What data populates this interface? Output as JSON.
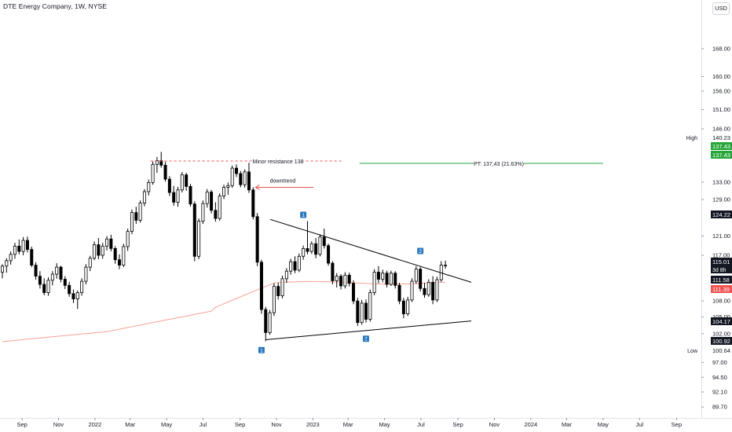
{
  "header": {
    "title": "DTE Energy Company, 1W, NYSE",
    "currency": "USD"
  },
  "chart_data": {
    "type": "candlestick",
    "symbol": "DTE",
    "interval": "1W",
    "exchange": "NYSE",
    "colors": {
      "up_body": "#ffffff",
      "down_body": "#000000",
      "wick": "#000000",
      "ma_line": "#f7a097",
      "resistance": "#ef5350",
      "target": "#26a63a",
      "trendline": "#000000",
      "arrow": "#ef5350",
      "marker": "#2a79bd",
      "axis_text": "#131722"
    },
    "y_axis": {
      "scale": "log",
      "range": [
        88.5,
        178
      ],
      "ticks": [
        "168.00",
        "160.00",
        "156.00",
        "151.00",
        "146.00",
        "133.00",
        "129.00",
        "121.00",
        "117.00",
        "108.00",
        "105.00",
        "102.00",
        "97.00",
        "94.50",
        "92.10",
        "89.70"
      ]
    },
    "x_axis": {
      "range": [
        "2021-07-26",
        "2024-10-10"
      ],
      "ticks": [
        {
          "date": "2021-09-01",
          "label": "Sep"
        },
        {
          "date": "2021-11-01",
          "label": "Nov"
        },
        {
          "date": "2022-01-01",
          "label": "2022"
        },
        {
          "date": "2022-03-01",
          "label": "Mar"
        },
        {
          "date": "2022-05-01",
          "label": "May"
        },
        {
          "date": "2022-07-01",
          "label": "Jul"
        },
        {
          "date": "2022-09-01",
          "label": "Sep"
        },
        {
          "date": "2022-11-01",
          "label": "Nov"
        },
        {
          "date": "2023-01-01",
          "label": "2023"
        },
        {
          "date": "2023-03-01",
          "label": "Mar"
        },
        {
          "date": "2023-05-01",
          "label": "May"
        },
        {
          "date": "2023-07-01",
          "label": "Jul"
        },
        {
          "date": "2023-09-01",
          "label": "Sep"
        },
        {
          "date": "2023-11-01",
          "label": "Nov"
        },
        {
          "date": "2024-01-01",
          "label": "2024"
        },
        {
          "date": "2024-03-01",
          "label": "Mar"
        },
        {
          "date": "2024-05-01",
          "label": "May"
        },
        {
          "date": "2024-07-01",
          "label": "Jul"
        },
        {
          "date": "2024-09-01",
          "label": "Sep"
        }
      ]
    },
    "price_tags": [
      {
        "label": "High",
        "value": "140.23",
        "style": "plain"
      },
      {
        "label": "",
        "value": "137.43",
        "style": "green"
      },
      {
        "label": "",
        "value": "137.43",
        "style": "green"
      },
      {
        "label": "",
        "value": "124.22",
        "style": "dark"
      },
      {
        "label": "",
        "value": "115.01",
        "style": "dark",
        "sub": "3d 8h"
      },
      {
        "label": "",
        "value": "111.58",
        "style": "dark"
      },
      {
        "label": "",
        "value": "111.39",
        "style": "red"
      },
      {
        "label": "",
        "value": "104.17",
        "style": "dark"
      },
      {
        "label": "",
        "value": "100.92",
        "style": "dark"
      },
      {
        "label": "Low",
        "value": "100.64",
        "style": "plain"
      }
    ],
    "annotations": {
      "resistance_label": "Minor resistance 138",
      "target_label": "PT: 137,43 (21.63%)",
      "downtrend_label": "downtrend",
      "markers": [
        "1",
        "1",
        "2",
        "2"
      ]
    },
    "candles": [
      {
        "date": "2021-07-26",
        "o": 113.6,
        "h": 115.2,
        "l": 112.4,
        "c": 114.8
      },
      {
        "date": "2021-08-02",
        "o": 114.8,
        "h": 116.4,
        "l": 113.5,
        "c": 115.9
      },
      {
        "date": "2021-08-09",
        "o": 115.9,
        "h": 117.8,
        "l": 115.1,
        "c": 117.2
      },
      {
        "date": "2021-08-16",
        "o": 117.2,
        "h": 119.6,
        "l": 116.3,
        "c": 118.9
      },
      {
        "date": "2021-08-23",
        "o": 118.9,
        "h": 120.3,
        "l": 117.2,
        "c": 117.8
      },
      {
        "date": "2021-08-30",
        "o": 117.8,
        "h": 120.8,
        "l": 117.0,
        "c": 120.1
      },
      {
        "date": "2021-09-06",
        "o": 120.1,
        "h": 120.9,
        "l": 117.6,
        "c": 118.2
      },
      {
        "date": "2021-09-13",
        "o": 118.2,
        "h": 118.8,
        "l": 114.6,
        "c": 115.0
      },
      {
        "date": "2021-09-20",
        "o": 115.0,
        "h": 115.6,
        "l": 112.1,
        "c": 112.8
      },
      {
        "date": "2021-09-27",
        "o": 112.8,
        "h": 113.8,
        "l": 110.4,
        "c": 111.2
      },
      {
        "date": "2021-10-04",
        "o": 111.2,
        "h": 112.4,
        "l": 109.1,
        "c": 109.6
      },
      {
        "date": "2021-10-11",
        "o": 109.6,
        "h": 112.6,
        "l": 109.0,
        "c": 112.0
      },
      {
        "date": "2021-10-18",
        "o": 112.0,
        "h": 113.8,
        "l": 111.0,
        "c": 113.2
      },
      {
        "date": "2021-10-25",
        "o": 113.2,
        "h": 115.4,
        "l": 112.3,
        "c": 114.6
      },
      {
        "date": "2021-11-01",
        "o": 114.6,
        "h": 114.9,
        "l": 111.6,
        "c": 112.2
      },
      {
        "date": "2021-11-08",
        "o": 112.2,
        "h": 112.8,
        "l": 110.3,
        "c": 111.0
      },
      {
        "date": "2021-11-15",
        "o": 111.0,
        "h": 111.7,
        "l": 108.8,
        "c": 109.4
      },
      {
        "date": "2021-11-22",
        "o": 109.4,
        "h": 110.2,
        "l": 107.6,
        "c": 108.4
      },
      {
        "date": "2021-11-29",
        "o": 108.4,
        "h": 110.0,
        "l": 106.5,
        "c": 109.6
      },
      {
        "date": "2021-12-06",
        "o": 109.6,
        "h": 112.4,
        "l": 109.0,
        "c": 111.8
      },
      {
        "date": "2021-12-13",
        "o": 111.8,
        "h": 115.2,
        "l": 111.2,
        "c": 114.6
      },
      {
        "date": "2021-12-20",
        "o": 114.6,
        "h": 116.9,
        "l": 113.8,
        "c": 116.4
      },
      {
        "date": "2021-12-27",
        "o": 116.4,
        "h": 119.9,
        "l": 116.0,
        "c": 119.2
      },
      {
        "date": "2022-01-03",
        "o": 119.2,
        "h": 120.6,
        "l": 116.2,
        "c": 117.0
      },
      {
        "date": "2022-01-10",
        "o": 117.0,
        "h": 119.6,
        "l": 116.3,
        "c": 118.9
      },
      {
        "date": "2022-01-17",
        "o": 118.9,
        "h": 121.0,
        "l": 118.0,
        "c": 120.4
      },
      {
        "date": "2022-01-24",
        "o": 120.4,
        "h": 121.3,
        "l": 117.8,
        "c": 118.4
      },
      {
        "date": "2022-01-31",
        "o": 118.4,
        "h": 118.9,
        "l": 115.3,
        "c": 116.1
      },
      {
        "date": "2022-02-07",
        "o": 116.1,
        "h": 117.2,
        "l": 114.2,
        "c": 115.0
      },
      {
        "date": "2022-02-14",
        "o": 115.0,
        "h": 119.4,
        "l": 114.6,
        "c": 118.8
      },
      {
        "date": "2022-02-21",
        "o": 118.8,
        "h": 122.6,
        "l": 117.9,
        "c": 122.0
      },
      {
        "date": "2022-02-28",
        "o": 122.0,
        "h": 126.8,
        "l": 121.4,
        "c": 126.1
      },
      {
        "date": "2022-03-07",
        "o": 126.1,
        "h": 127.4,
        "l": 123.6,
        "c": 124.4
      },
      {
        "date": "2022-03-14",
        "o": 124.4,
        "h": 128.8,
        "l": 123.9,
        "c": 128.2
      },
      {
        "date": "2022-03-21",
        "o": 128.2,
        "h": 131.4,
        "l": 127.5,
        "c": 130.8
      },
      {
        "date": "2022-03-28",
        "o": 130.8,
        "h": 133.6,
        "l": 129.9,
        "c": 132.9
      },
      {
        "date": "2022-04-04",
        "o": 132.9,
        "h": 137.9,
        "l": 132.4,
        "c": 137.2
      },
      {
        "date": "2022-04-11",
        "o": 137.2,
        "h": 139.0,
        "l": 135.2,
        "c": 138.1
      },
      {
        "date": "2022-04-18",
        "o": 138.1,
        "h": 140.23,
        "l": 136.4,
        "c": 137.0
      },
      {
        "date": "2022-04-25",
        "o": 137.0,
        "h": 137.8,
        "l": 133.1,
        "c": 133.7
      },
      {
        "date": "2022-05-02",
        "o": 133.7,
        "h": 134.4,
        "l": 129.8,
        "c": 130.6
      },
      {
        "date": "2022-05-09",
        "o": 130.6,
        "h": 132.1,
        "l": 127.6,
        "c": 128.4
      },
      {
        "date": "2022-05-16",
        "o": 128.4,
        "h": 131.9,
        "l": 127.4,
        "c": 131.2
      },
      {
        "date": "2022-05-23",
        "o": 131.2,
        "h": 135.4,
        "l": 130.6,
        "c": 134.7
      },
      {
        "date": "2022-05-30",
        "o": 134.7,
        "h": 135.2,
        "l": 131.0,
        "c": 132.0
      },
      {
        "date": "2022-06-06",
        "o": 132.0,
        "h": 132.6,
        "l": 127.4,
        "c": 128.0
      },
      {
        "date": "2022-06-13",
        "o": 128.0,
        "h": 128.6,
        "l": 115.8,
        "c": 116.8
      },
      {
        "date": "2022-06-20",
        "o": 116.8,
        "h": 124.8,
        "l": 116.2,
        "c": 124.2
      },
      {
        "date": "2022-06-27",
        "o": 124.2,
        "h": 128.8,
        "l": 123.6,
        "c": 128.1
      },
      {
        "date": "2022-07-04",
        "o": 128.1,
        "h": 131.4,
        "l": 127.2,
        "c": 130.7
      },
      {
        "date": "2022-07-11",
        "o": 130.7,
        "h": 131.2,
        "l": 125.9,
        "c": 126.6
      },
      {
        "date": "2022-07-18",
        "o": 126.6,
        "h": 128.4,
        "l": 124.1,
        "c": 124.8
      },
      {
        "date": "2022-07-25",
        "o": 124.8,
        "h": 130.4,
        "l": 124.3,
        "c": 129.8
      },
      {
        "date": "2022-08-01",
        "o": 129.8,
        "h": 132.4,
        "l": 129.1,
        "c": 131.8
      },
      {
        "date": "2022-08-08",
        "o": 131.8,
        "h": 132.9,
        "l": 130.1,
        "c": 132.2
      },
      {
        "date": "2022-08-15",
        "o": 132.2,
        "h": 136.9,
        "l": 131.7,
        "c": 136.3
      },
      {
        "date": "2022-08-22",
        "o": 136.3,
        "h": 137.2,
        "l": 134.2,
        "c": 135.0
      },
      {
        "date": "2022-08-29",
        "o": 135.0,
        "h": 135.6,
        "l": 131.8,
        "c": 132.4
      },
      {
        "date": "2022-09-05",
        "o": 132.4,
        "h": 136.0,
        "l": 131.7,
        "c": 135.4
      },
      {
        "date": "2022-09-12",
        "o": 135.4,
        "h": 137.6,
        "l": 130.5,
        "c": 131.2
      },
      {
        "date": "2022-09-19",
        "o": 131.2,
        "h": 131.8,
        "l": 124.6,
        "c": 125.2
      },
      {
        "date": "2022-09-26",
        "o": 125.2,
        "h": 126.0,
        "l": 114.8,
        "c": 115.6
      },
      {
        "date": "2022-10-03",
        "o": 115.6,
        "h": 116.1,
        "l": 105.6,
        "c": 106.4
      },
      {
        "date": "2022-10-10",
        "o": 106.4,
        "h": 106.9,
        "l": 100.64,
        "c": 102.2
      },
      {
        "date": "2022-10-17",
        "o": 102.2,
        "h": 106.3,
        "l": 101.8,
        "c": 105.8
      },
      {
        "date": "2022-10-24",
        "o": 105.8,
        "h": 111.4,
        "l": 105.2,
        "c": 110.8
      },
      {
        "date": "2022-10-31",
        "o": 110.8,
        "h": 111.5,
        "l": 108.3,
        "c": 109.0
      },
      {
        "date": "2022-11-07",
        "o": 109.0,
        "h": 112.9,
        "l": 108.5,
        "c": 112.3
      },
      {
        "date": "2022-11-14",
        "o": 112.3,
        "h": 114.4,
        "l": 111.5,
        "c": 113.8
      },
      {
        "date": "2022-11-21",
        "o": 113.8,
        "h": 116.3,
        "l": 113.1,
        "c": 115.7
      },
      {
        "date": "2022-11-28",
        "o": 115.7,
        "h": 116.8,
        "l": 113.4,
        "c": 114.0
      },
      {
        "date": "2022-12-05",
        "o": 114.0,
        "h": 117.4,
        "l": 113.6,
        "c": 116.8
      },
      {
        "date": "2022-12-12",
        "o": 116.8,
        "h": 119.0,
        "l": 116.1,
        "c": 118.4
      },
      {
        "date": "2022-12-19",
        "o": 118.4,
        "h": 124.22,
        "l": 117.2,
        "c": 117.8
      },
      {
        "date": "2022-12-26",
        "o": 117.8,
        "h": 119.9,
        "l": 117.3,
        "c": 119.4
      },
      {
        "date": "2023-01-02",
        "o": 119.4,
        "h": 120.6,
        "l": 116.4,
        "c": 117.2
      },
      {
        "date": "2023-01-09",
        "o": 117.2,
        "h": 121.4,
        "l": 116.8,
        "c": 120.8
      },
      {
        "date": "2023-01-16",
        "o": 120.8,
        "h": 122.6,
        "l": 118.4,
        "c": 119.0
      },
      {
        "date": "2023-01-23",
        "o": 119.0,
        "h": 119.4,
        "l": 114.9,
        "c": 115.4
      },
      {
        "date": "2023-01-30",
        "o": 115.4,
        "h": 115.8,
        "l": 111.2,
        "c": 111.9
      },
      {
        "date": "2023-02-06",
        "o": 111.9,
        "h": 113.4,
        "l": 110.6,
        "c": 112.8
      },
      {
        "date": "2023-02-13",
        "o": 112.8,
        "h": 113.2,
        "l": 110.2,
        "c": 110.9
      },
      {
        "date": "2023-02-20",
        "o": 110.9,
        "h": 113.6,
        "l": 110.4,
        "c": 113.0
      },
      {
        "date": "2023-02-27",
        "o": 113.0,
        "h": 113.5,
        "l": 110.8,
        "c": 111.4
      },
      {
        "date": "2023-03-06",
        "o": 111.4,
        "h": 112.0,
        "l": 107.4,
        "c": 108.0
      },
      {
        "date": "2023-03-13",
        "o": 108.0,
        "h": 108.6,
        "l": 103.4,
        "c": 104.0
      },
      {
        "date": "2023-03-20",
        "o": 104.0,
        "h": 108.2,
        "l": 103.6,
        "c": 107.6
      },
      {
        "date": "2023-03-27",
        "o": 107.6,
        "h": 108.3,
        "l": 104.0,
        "c": 104.6
      },
      {
        "date": "2023-04-03",
        "o": 104.6,
        "h": 110.2,
        "l": 104.17,
        "c": 109.6
      },
      {
        "date": "2023-04-10",
        "o": 109.6,
        "h": 114.2,
        "l": 109.1,
        "c": 113.6
      },
      {
        "date": "2023-04-17",
        "o": 113.6,
        "h": 114.8,
        "l": 111.4,
        "c": 112.2
      },
      {
        "date": "2023-04-24",
        "o": 112.2,
        "h": 114.1,
        "l": 111.6,
        "c": 113.4
      },
      {
        "date": "2023-05-01",
        "o": 113.4,
        "h": 113.9,
        "l": 110.6,
        "c": 111.2
      },
      {
        "date": "2023-05-08",
        "o": 111.2,
        "h": 113.9,
        "l": 110.9,
        "c": 113.4
      },
      {
        "date": "2023-05-15",
        "o": 113.4,
        "h": 113.8,
        "l": 110.4,
        "c": 111.0
      },
      {
        "date": "2023-05-22",
        "o": 111.0,
        "h": 111.5,
        "l": 107.4,
        "c": 108.0
      },
      {
        "date": "2023-05-29",
        "o": 108.0,
        "h": 108.6,
        "l": 104.8,
        "c": 105.6
      },
      {
        "date": "2023-06-05",
        "o": 105.6,
        "h": 108.8,
        "l": 105.2,
        "c": 108.2
      },
      {
        "date": "2023-06-12",
        "o": 108.2,
        "h": 112.4,
        "l": 107.8,
        "c": 111.8
      },
      {
        "date": "2023-06-19",
        "o": 111.8,
        "h": 114.8,
        "l": 111.3,
        "c": 114.2
      },
      {
        "date": "2023-06-26",
        "o": 114.2,
        "h": 114.6,
        "l": 109.8,
        "c": 110.4
      },
      {
        "date": "2023-07-03",
        "o": 110.4,
        "h": 111.5,
        "l": 108.6,
        "c": 109.2
      },
      {
        "date": "2023-07-10",
        "o": 109.2,
        "h": 112.2,
        "l": 108.8,
        "c": 111.6
      },
      {
        "date": "2023-07-17",
        "o": 111.6,
        "h": 112.8,
        "l": 107.4,
        "c": 108.2
      },
      {
        "date": "2023-07-24",
        "o": 108.2,
        "h": 112.7,
        "l": 107.8,
        "c": 112.1
      },
      {
        "date": "2023-07-31",
        "o": 112.1,
        "h": 115.8,
        "l": 111.7,
        "c": 115.0
      },
      {
        "date": "2023-08-07",
        "o": 115.0,
        "h": 115.9,
        "l": 114.3,
        "c": 115.01
      }
    ]
  }
}
